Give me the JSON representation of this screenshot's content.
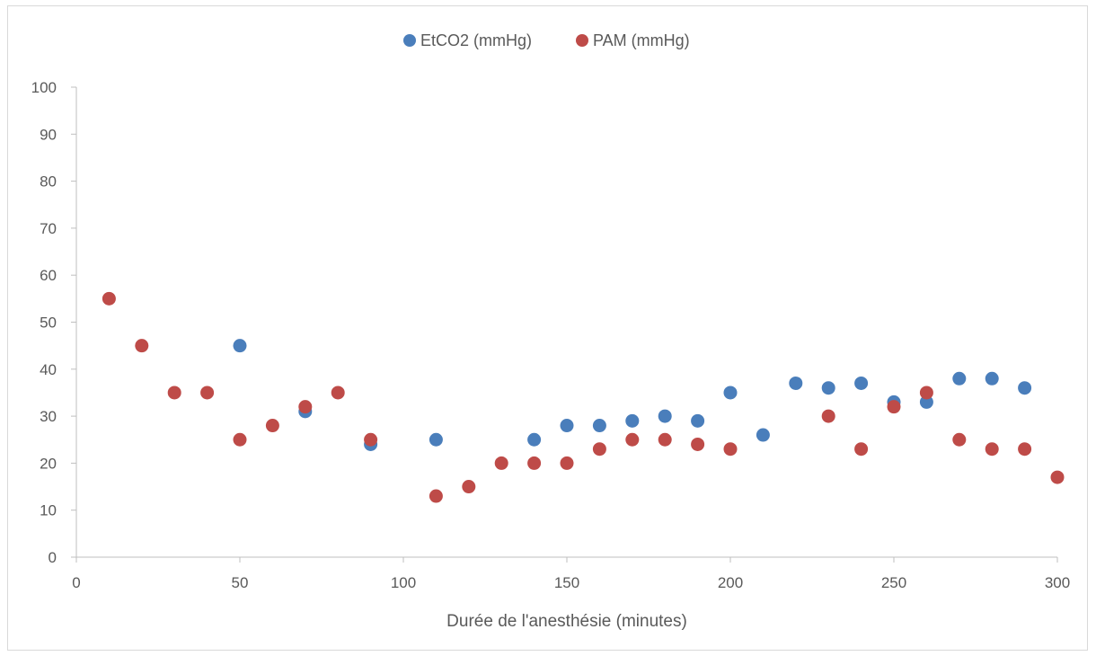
{
  "chart_data": {
    "type": "scatter",
    "title": "",
    "xlabel": "Durée de l'anesthésie (minutes)",
    "ylabel": "",
    "xlim": [
      0,
      300
    ],
    "ylim": [
      0,
      100
    ],
    "x_ticks": [
      "0",
      "50",
      "100",
      "150",
      "200",
      "250",
      "300"
    ],
    "y_ticks": [
      "0",
      "10",
      "20",
      "30",
      "40",
      "50",
      "60",
      "70",
      "80",
      "90",
      "100"
    ],
    "grid": false,
    "legend_position": "top",
    "series": [
      {
        "name": "EtCO2 (mmHg)",
        "color": "#4a7ebb",
        "points": [
          [
            50,
            45
          ],
          [
            70,
            31
          ],
          [
            90,
            24
          ],
          [
            110,
            25
          ],
          [
            140,
            25
          ],
          [
            150,
            28
          ],
          [
            160,
            28
          ],
          [
            170,
            29
          ],
          [
            180,
            30
          ],
          [
            190,
            29
          ],
          [
            200,
            35
          ],
          [
            210,
            26
          ],
          [
            220,
            37
          ],
          [
            230,
            36
          ],
          [
            240,
            37
          ],
          [
            250,
            33
          ],
          [
            260,
            33
          ],
          [
            270,
            38
          ],
          [
            280,
            38
          ],
          [
            290,
            36
          ]
        ]
      },
      {
        "name": "PAM (mmHg)",
        "color": "#be4b48",
        "points": [
          [
            10,
            55
          ],
          [
            20,
            45
          ],
          [
            30,
            35
          ],
          [
            40,
            35
          ],
          [
            50,
            25
          ],
          [
            60,
            28
          ],
          [
            70,
            32
          ],
          [
            80,
            35
          ],
          [
            90,
            25
          ],
          [
            110,
            13
          ],
          [
            120,
            15
          ],
          [
            130,
            20
          ],
          [
            140,
            20
          ],
          [
            150,
            20
          ],
          [
            160,
            23
          ],
          [
            170,
            25
          ],
          [
            180,
            25
          ],
          [
            190,
            24
          ],
          [
            200,
            23
          ],
          [
            230,
            30
          ],
          [
            240,
            23
          ],
          [
            250,
            32
          ],
          [
            260,
            35
          ],
          [
            270,
            25
          ],
          [
            280,
            23
          ],
          [
            290,
            23
          ],
          [
            300,
            17
          ]
        ]
      }
    ]
  }
}
